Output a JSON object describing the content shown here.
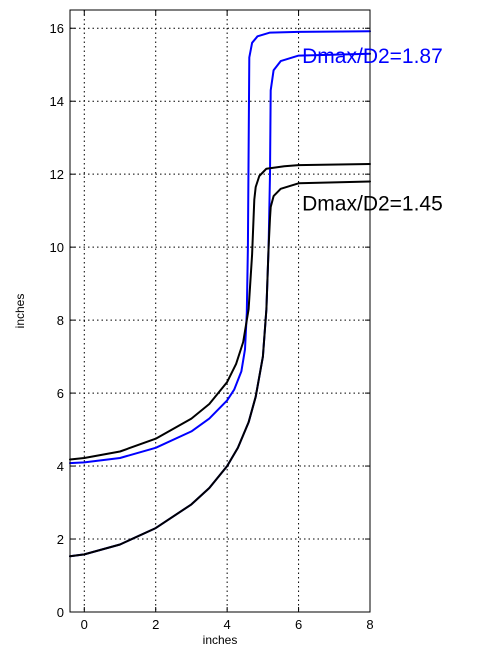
{
  "chart_data": {
    "type": "line",
    "xlabel": "inches",
    "ylabel": "inches",
    "xlim": [
      -0.4,
      8
    ],
    "ylim": [
      0,
      16.5
    ],
    "xticks": [
      0,
      2,
      4,
      6,
      8
    ],
    "yticks": [
      0,
      2,
      4,
      6,
      8,
      10,
      12,
      14,
      16
    ],
    "xtick_labels": [
      "0",
      "2",
      "4",
      "6",
      "8"
    ],
    "ytick_labels": [
      "0",
      "2",
      "4",
      "6",
      "8",
      "10",
      "12",
      "14",
      "16"
    ],
    "grid": true,
    "annotations": [
      {
        "text": "Dmax/D2=1.87",
        "color": "#0000ff",
        "x": 6.1,
        "y": 15.05
      },
      {
        "text": "Dmax/D2=1.45",
        "color": "#000000",
        "x": 6.1,
        "y": 11.0
      }
    ],
    "series": [
      {
        "color": "#0000ff",
        "x": [
          -0.4,
          0,
          1,
          2,
          3,
          3.5,
          4,
          4.2,
          4.4,
          4.5,
          4.55,
          4.58,
          4.62,
          4.7,
          4.85,
          5.2,
          6,
          8
        ],
        "y": [
          4.08,
          4.1,
          4.22,
          4.5,
          4.95,
          5.3,
          5.8,
          6.1,
          6.6,
          7.2,
          8.2,
          10.0,
          15.2,
          15.6,
          15.78,
          15.88,
          15.9,
          15.92
        ]
      },
      {
        "color": "#0000ff",
        "x": [
          -0.4,
          0,
          1,
          2,
          3,
          3.5,
          4,
          4.3,
          4.6,
          4.8,
          5.0,
          5.1,
          5.16,
          5.2,
          5.22,
          5.3,
          5.5,
          6,
          8
        ],
        "y": [
          1.53,
          1.58,
          1.85,
          2.3,
          2.95,
          3.4,
          4.0,
          4.5,
          5.2,
          5.9,
          7.0,
          8.3,
          10.0,
          12.0,
          14.3,
          14.85,
          15.1,
          15.25,
          15.3
        ]
      },
      {
        "color": "#000000",
        "x": [
          -0.4,
          0,
          1,
          2,
          3,
          3.5,
          4,
          4.25,
          4.45,
          4.6,
          4.7,
          4.76,
          4.8,
          4.9,
          5.1,
          5.6,
          6,
          8
        ],
        "y": [
          4.18,
          4.22,
          4.4,
          4.75,
          5.3,
          5.7,
          6.3,
          6.8,
          7.4,
          8.3,
          9.8,
          11.3,
          11.65,
          11.95,
          12.15,
          12.22,
          12.25,
          12.28
        ]
      },
      {
        "color": "#000000",
        "x": [
          -0.4,
          0,
          1,
          2,
          3,
          3.5,
          4,
          4.3,
          4.6,
          4.8,
          5.0,
          5.1,
          5.16,
          5.2,
          5.22,
          5.3,
          5.5,
          6,
          8
        ],
        "y": [
          1.53,
          1.58,
          1.85,
          2.3,
          2.95,
          3.4,
          4.0,
          4.5,
          5.2,
          5.9,
          7.0,
          8.3,
          10.0,
          10.8,
          11.1,
          11.4,
          11.6,
          11.75,
          11.8
        ]
      }
    ]
  }
}
